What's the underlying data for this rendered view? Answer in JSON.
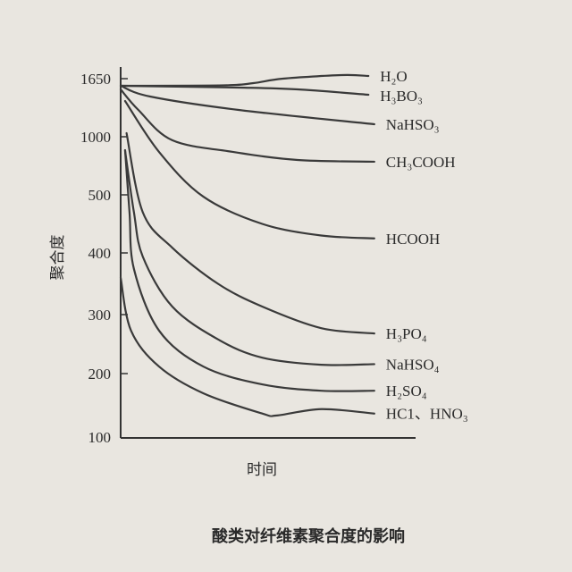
{
  "chart_data": {
    "type": "line",
    "title": "酸类对纤维素聚合度的影响",
    "xlabel": "时间",
    "ylabel": "聚合度",
    "x_ticks_labeled": false,
    "y_ticks": [
      1650,
      1000,
      500,
      400,
      300,
      200,
      100
    ],
    "y_scale": "non-uniform (equally spaced ticks)",
    "grid": false,
    "legend": "inline labels at right end of each curve",
    "line_color": "#3a3a3a",
    "series": [
      {
        "name": "H₂O",
        "x": [
          0,
          3.5,
          4.5,
          5.5,
          7.5,
          8.4
        ],
        "y": [
          1570,
          1575,
          1600,
          1650,
          1690,
          1680
        ]
      },
      {
        "name": "H₃BO₃",
        "x": [
          0,
          4,
          6,
          8.4
        ],
        "y": [
          1570,
          1550,
          1530,
          1470
        ]
      },
      {
        "name": "NaHSO₃",
        "x": [
          0,
          1,
          4,
          8.6
        ],
        "y": [
          1570,
          1450,
          1300,
          1140
        ]
      },
      {
        "name": "CH₃COOH",
        "x": [
          0,
          0.6,
          1.75,
          3.8,
          6,
          8.6
        ],
        "y": [
          1530,
          1300,
          970,
          870,
          800,
          785
        ]
      },
      {
        "name": "HCOOH",
        "x": [
          0.15,
          1.3,
          2.8,
          4.8,
          6.8,
          8.6
        ],
        "y": [
          1400,
          870,
          497,
          450,
          430,
          425
        ]
      },
      {
        "name": "H₃PO₄",
        "x": [
          0.2,
          0.75,
          1.75,
          3.3,
          4.8,
          6.8,
          8.6
        ],
        "y": [
          1040,
          470,
          409,
          350,
          313,
          277,
          268
        ]
      },
      {
        "name": "NaHSO₄",
        "x": [
          0.15,
          0.45,
          0.75,
          1.75,
          3.3,
          4.8,
          6.8,
          8.6
        ],
        "y": [
          880,
          470,
          394,
          313,
          258,
          227,
          215,
          216
        ]
      },
      {
        "name": "H₂SO₄",
        "x": [
          0.15,
          0.3,
          0.45,
          1.3,
          2.8,
          4.8,
          6.8,
          8.6
        ],
        "y": [
          885,
          470,
          374,
          273,
          212,
          183,
          173,
          173
        ]
      },
      {
        "name": "HC1、HNO₃",
        "x": [
          0,
          0.35,
          1.3,
          2.8,
          4.8,
          5.3,
          6.8,
          8.6
        ],
        "y": [
          360,
          273,
          212,
          169,
          137,
          134,
          144,
          137
        ]
      }
    ]
  }
}
